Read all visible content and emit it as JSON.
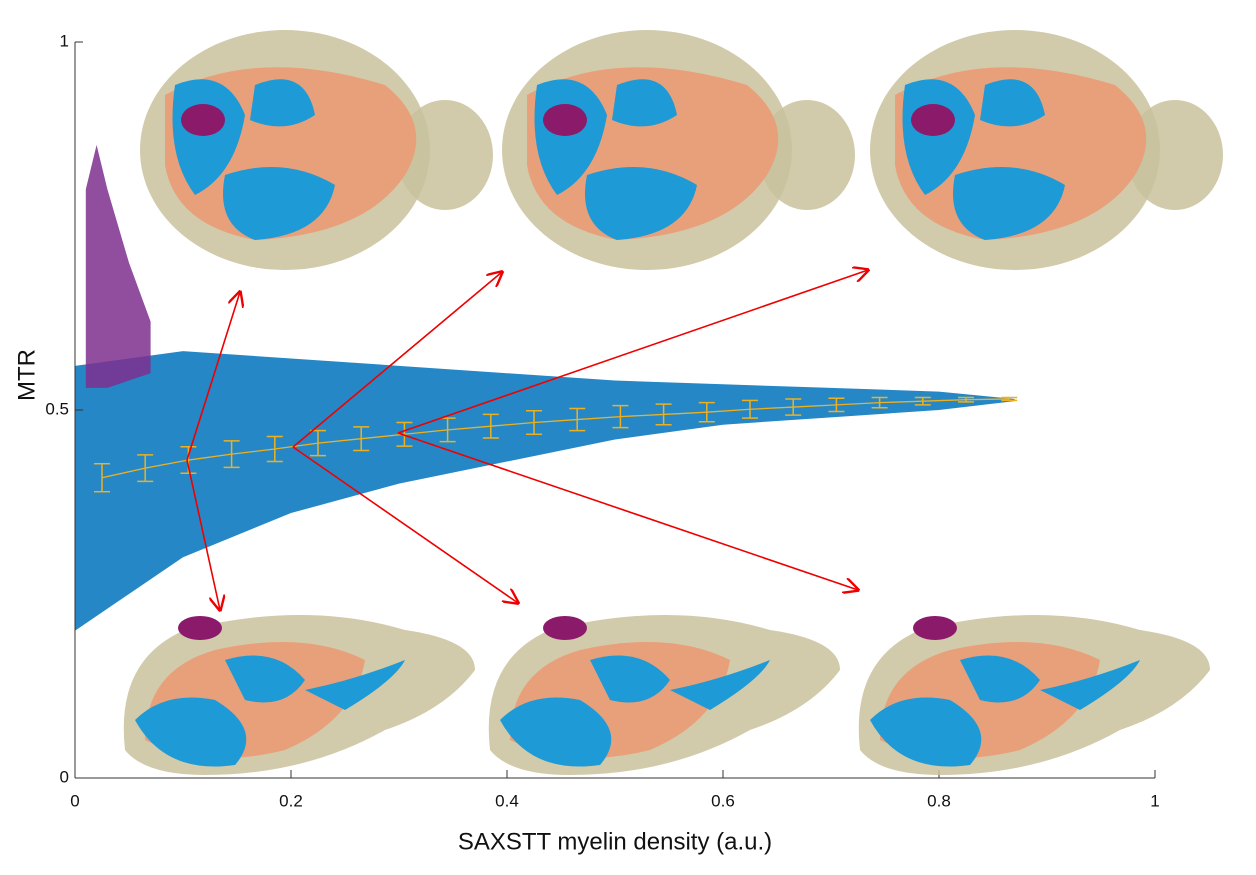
{
  "chart_data": {
    "type": "scatter",
    "xlabel": "SAXSTT myelin density (a.u.)",
    "ylabel": "MTR",
    "xlim": [
      0,
      1
    ],
    "ylim": [
      0,
      1
    ],
    "xticks": [
      0,
      0.2,
      0.4,
      0.6,
      0.8,
      1
    ],
    "yticks": [
      0,
      0.5,
      1
    ],
    "clouds": [
      {
        "color": "#0072bd",
        "x": [
          0,
          0.05,
          0.1,
          0.2,
          0.3,
          0.4,
          0.5,
          0.6,
          0.7,
          0.8,
          0.87
        ],
        "upper": [
          0.56,
          0.57,
          0.58,
          0.57,
          0.56,
          0.55,
          0.54,
          0.535,
          0.53,
          0.525,
          0.515
        ],
        "lower": [
          0.2,
          0.25,
          0.3,
          0.36,
          0.4,
          0.43,
          0.46,
          0.48,
          0.49,
          0.5,
          0.512
        ]
      },
      {
        "color": "#7e2f8e",
        "x": [
          0.01,
          0.02,
          0.03,
          0.05,
          0.07
        ],
        "upper": [
          0.8,
          0.86,
          0.8,
          0.7,
          0.62
        ],
        "lower": [
          0.53,
          0.53,
          0.53,
          0.54,
          0.55
        ]
      }
    ],
    "series": [
      {
        "color": "#edb120",
        "x": [
          0.025,
          0.065,
          0.105,
          0.145,
          0.185,
          0.225,
          0.265,
          0.305,
          0.345,
          0.385,
          0.425,
          0.465,
          0.505,
          0.545,
          0.585,
          0.625,
          0.665,
          0.705,
          0.745,
          0.785,
          0.825,
          0.865
        ],
        "values": [
          0.408,
          0.421,
          0.432,
          0.44,
          0.447,
          0.455,
          0.461,
          0.467,
          0.473,
          0.478,
          0.483,
          0.487,
          0.491,
          0.494,
          0.497,
          0.501,
          0.504,
          0.507,
          0.51,
          0.512,
          0.514,
          0.515
        ],
        "errors": [
          0.019,
          0.018,
          0.018,
          0.018,
          0.017,
          0.017,
          0.016,
          0.016,
          0.016,
          0.016,
          0.016,
          0.015,
          0.015,
          0.014,
          0.013,
          0.012,
          0.011,
          0.009,
          0.007,
          0.005,
          0.003,
          0.002
        ]
      }
    ]
  }
}
